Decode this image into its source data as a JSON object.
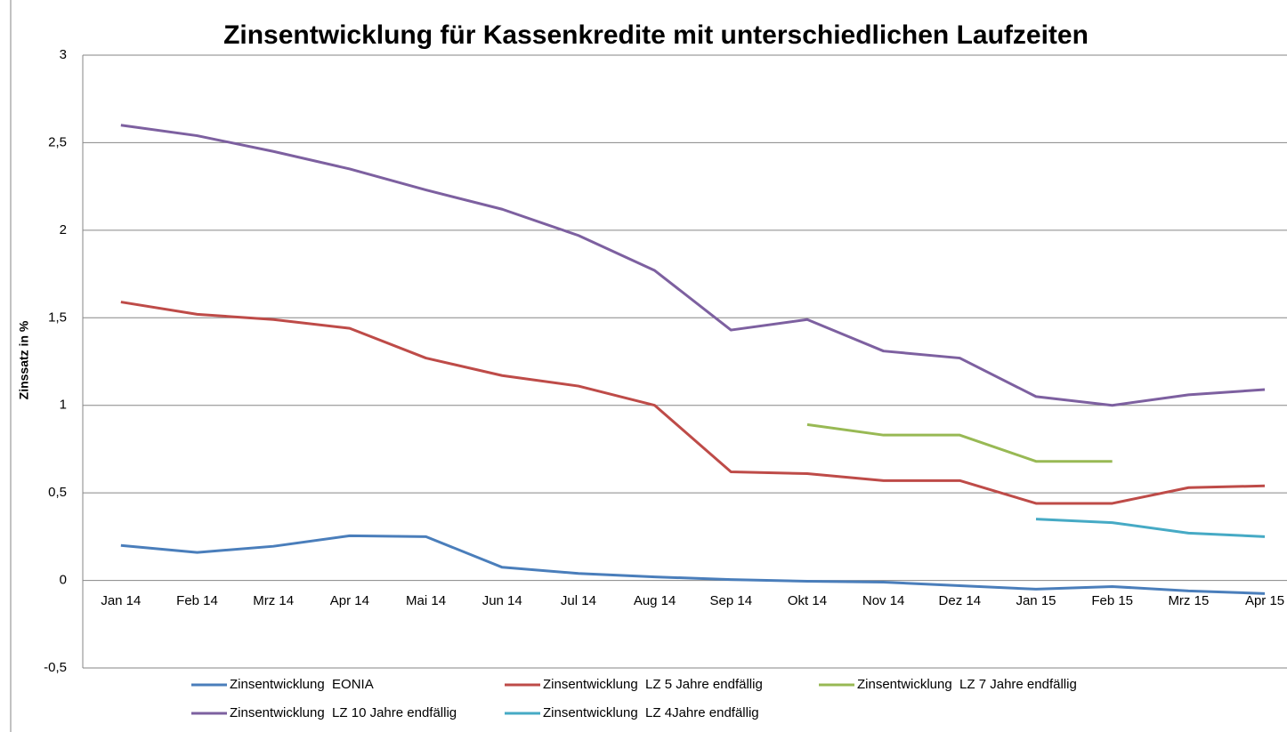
{
  "chart_data": {
    "type": "line",
    "title": "Zinsentwicklung für Kassenkredite mit unterschiedlichen Laufzeiten",
    "y_label": "Zinssatz in %",
    "categories": [
      "Jan 14",
      "Feb 14",
      "Mrz 14",
      "Apr 14",
      "Mai 14",
      "Jun 14",
      "Jul 14",
      "Aug 14",
      "Sep 14",
      "Okt 14",
      "Nov 14",
      "Dez 14",
      "Jan 15",
      "Feb 15",
      "Mrz 15",
      "Apr 15"
    ],
    "series": [
      {
        "name": "Zinsentwicklung  EONIA",
        "color": "#4a7ebb",
        "values": [
          0.2,
          0.16,
          0.195,
          0.255,
          0.25,
          0.075,
          0.04,
          0.02,
          0.005,
          -0.005,
          -0.01,
          -0.03,
          -0.05,
          -0.035,
          -0.06,
          -0.075
        ]
      },
      {
        "name": "Zinsentwicklung  LZ 5 Jahre endfällig",
        "color": "#be4b48",
        "values": [
          1.59,
          1.52,
          1.49,
          1.44,
          1.27,
          1.17,
          1.11,
          1.0,
          0.62,
          0.61,
          0.57,
          0.57,
          0.44,
          0.44,
          0.53,
          0.54
        ]
      },
      {
        "name": "Zinsentwicklung  LZ 7 Jahre endfällig",
        "color": "#98b954",
        "values": [
          null,
          null,
          null,
          null,
          null,
          null,
          null,
          null,
          null,
          0.89,
          0.83,
          0.83,
          0.68,
          0.68,
          null,
          null
        ]
      },
      {
        "name": "Zinsentwicklung  LZ 10 Jahre endfällig",
        "color": "#7d60a0",
        "values": [
          2.6,
          2.54,
          2.45,
          2.35,
          2.23,
          2.12,
          1.97,
          1.77,
          1.43,
          1.49,
          1.31,
          1.27,
          1.05,
          1.0,
          1.06,
          1.09
        ]
      },
      {
        "name": "Zinsentwicklung  LZ 4Jahre endfällig",
        "color": "#46aac5",
        "values": [
          null,
          null,
          null,
          null,
          null,
          null,
          null,
          null,
          null,
          null,
          null,
          null,
          0.35,
          0.33,
          0.27,
          0.25
        ]
      }
    ],
    "ylim": [
      -0.5,
      3
    ],
    "yticks": [
      {
        "value": -0.5,
        "label": "-0,5"
      },
      0,
      {
        "value": 0.5,
        "label": "0,5"
      },
      1,
      {
        "value": 1.5,
        "label": "1,5"
      },
      2,
      {
        "value": 2.5,
        "label": "2,5"
      },
      3
    ],
    "grid": true
  }
}
